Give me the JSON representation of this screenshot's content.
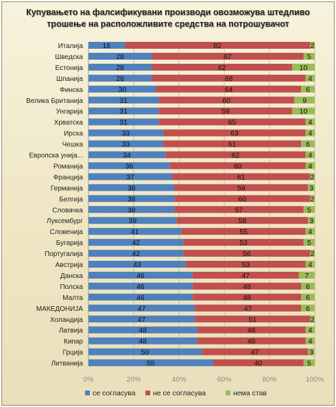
{
  "title_line1": "Купувањето на фалсификувани производи овозможува штедливо",
  "title_line2": "трошење на расположливите средства на потрошувачот",
  "colors": {
    "agree": "#4f81bd",
    "disagree": "#c0504d",
    "no_opinion": "#9bbb59"
  },
  "legend": [
    "се согласува",
    "не се согласува",
    "нема став"
  ],
  "chart_data": {
    "type": "bar",
    "orientation": "horizontal",
    "stacked": true,
    "title": "Купувањето на фалсификувани производи овозможува штедливо трошење на расположливите средства на потрошувачот",
    "xlim": [
      0,
      100
    ],
    "x_ticks": [
      "0%",
      "20%",
      "40%",
      "60%",
      "80%",
      "100%"
    ],
    "legend_position": "bottom",
    "categories": [
      "Италија",
      "Шведска",
      "Естонија",
      "Шпанија",
      "Финска",
      "Велика Британија",
      "Унгарија",
      "Хрватска",
      "Ирска",
      "Чешка",
      "Европска унија...",
      "Романија",
      "Франција",
      "Германија",
      "Белгија",
      "Словачка",
      "Луксембург",
      "Словенија",
      "Бугарија",
      "Португалија",
      "Австрија",
      "Данска",
      "Полска",
      "Малта",
      "МАКЕДОНИЈА",
      "Холандија",
      "Латвија",
      "Кипар",
      "Грција",
      "Литванија"
    ],
    "series": [
      {
        "name": "се согласува",
        "values": [
          16,
          28,
          28,
          28,
          30,
          31,
          31,
          31,
          33,
          33,
          34,
          36,
          37,
          38,
          38,
          38,
          39,
          41,
          42,
          42,
          43,
          46,
          46,
          46,
          47,
          47,
          48,
          48,
          50,
          55
        ]
      },
      {
        "name": "не се согласува",
        "values": [
          82,
          67,
          62,
          68,
          64,
          60,
          59,
          65,
          63,
          61,
          62,
          60,
          61,
          59,
          60,
          57,
          58,
          55,
          53,
          56,
          53,
          47,
          48,
          48,
          47,
          51,
          48,
          48,
          47,
          40
        ]
      },
      {
        "name": "нема став",
        "values": [
          2,
          5,
          10,
          4,
          6,
          9,
          10,
          4,
          4,
          6,
          4,
          4,
          2,
          3,
          2,
          5,
          3,
          4,
          5,
          2,
          4,
          7,
          6,
          6,
          6,
          2,
          4,
          4,
          3,
          5
        ]
      }
    ]
  }
}
